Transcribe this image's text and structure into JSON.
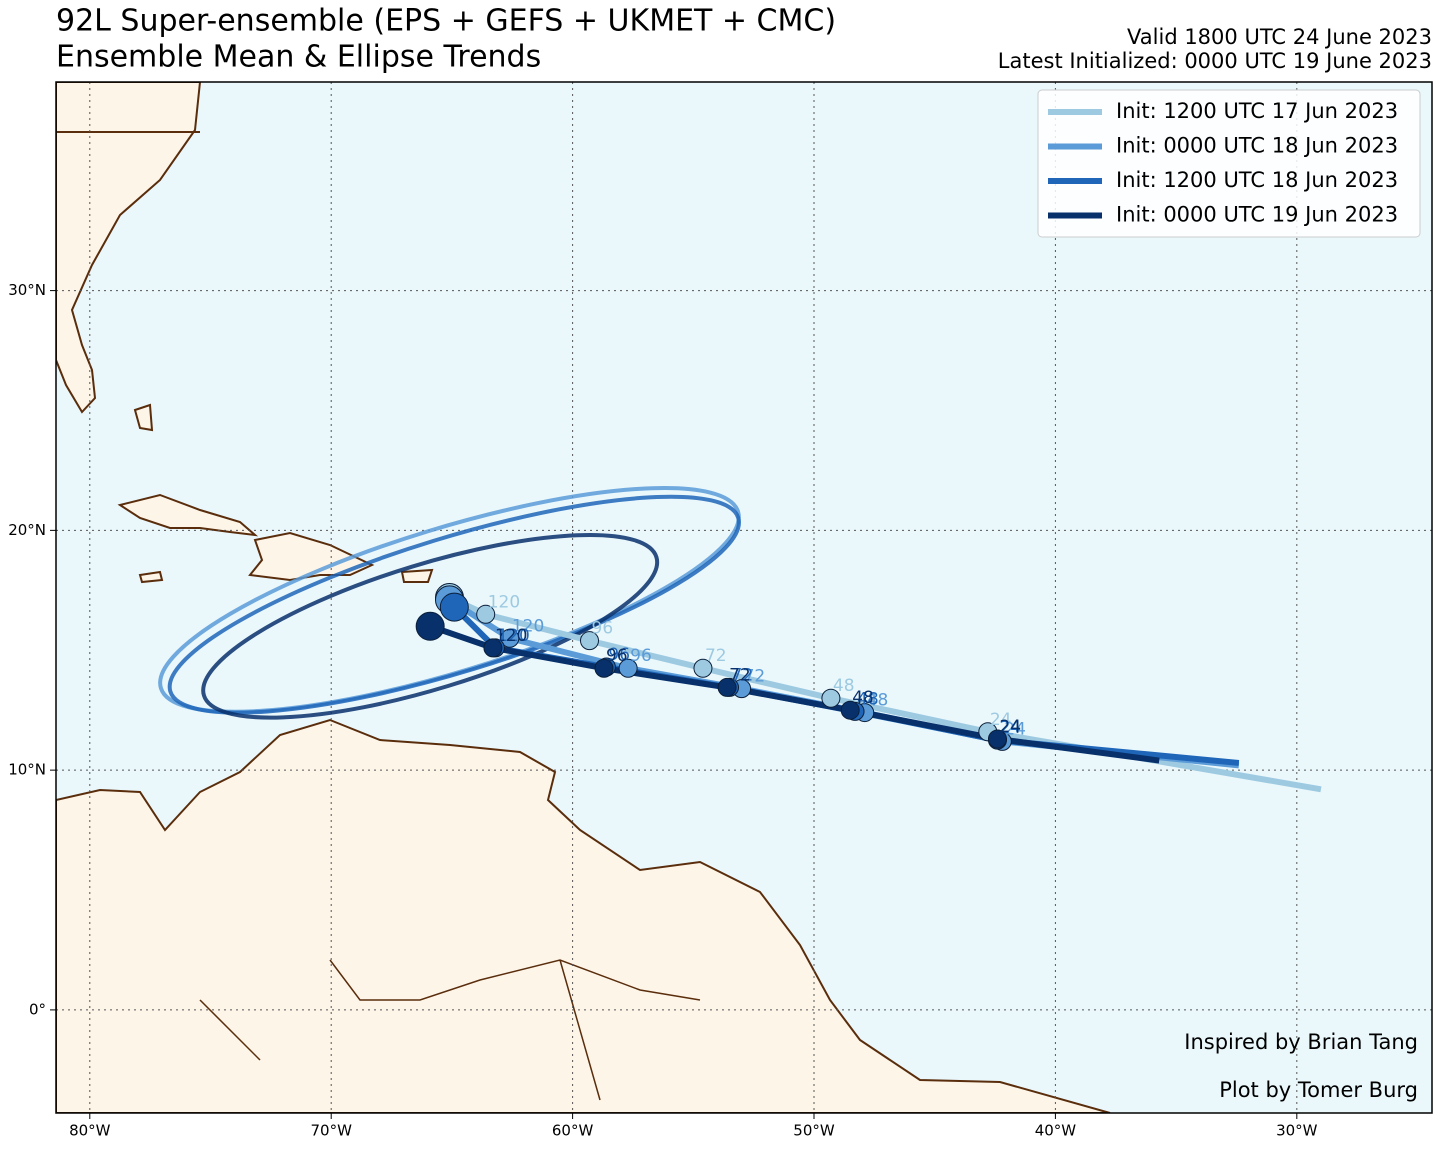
{
  "chart_data": {
    "type": "track-map",
    "title": "92L Super-ensemble (EPS + GEFS + UKMET + CMC)",
    "subtitle": "Ensemble Mean & Ellipse Trends",
    "valid": "Valid 1800 UTC 24 June 2023",
    "latest": "Latest Initialized: 0000 UTC 19 June 2023",
    "credits": [
      "Inspired by Brian Tang",
      "Plot by Tomer Burg"
    ],
    "xlim": [
      -81.4,
      -24.4
    ],
    "ylim": [
      -4.3,
      38.7
    ],
    "xticks": [
      {
        "value": -80,
        "label": "80°W"
      },
      {
        "value": -70,
        "label": "70°W"
      },
      {
        "value": -60,
        "label": "60°W"
      },
      {
        "value": -50,
        "label": "50°W"
      },
      {
        "value": -40,
        "label": "40°W"
      },
      {
        "value": -30,
        "label": "30°W"
      }
    ],
    "yticks": [
      {
        "value": 0,
        "label": "0°"
      },
      {
        "value": 10,
        "label": "10°N"
      },
      {
        "value": 20,
        "label": "20°N"
      },
      {
        "value": 30,
        "label": "30°N"
      }
    ],
    "grid": true,
    "legend": "upper right",
    "series": [
      {
        "name": "Init: 1200 UTC 17 Jun 2023",
        "color": "#9ecae1",
        "lon": [
          -29.0,
          -42.8,
          -49.3,
          -54.6,
          -59.3,
          -63.6,
          -65.1
        ],
        "lat": [
          9.2,
          11.6,
          13.0,
          14.25,
          15.4,
          16.5,
          17.2
        ],
        "hours": [
          null,
          24,
          48,
          72,
          96,
          120,
          null
        ]
      },
      {
        "name": "Init: 0000 UTC 18 Jun 2023",
        "color": "#5b9bd8",
        "lon": [
          -32.4,
          -42.2,
          -47.9,
          -53.0,
          -57.7,
          -62.6,
          -65.1
        ],
        "lat": [
          10.2,
          11.2,
          12.4,
          13.4,
          14.25,
          15.5,
          17.1
        ],
        "hours": [
          null,
          24,
          48,
          72,
          96,
          120,
          null
        ],
        "ellipse": {
          "center_lon": -65.1,
          "center_lat": 17.1,
          "semi_major": 12.5,
          "semi_minor": 3.0,
          "angle": 17
        }
      },
      {
        "name": "Init: 1200 UTC 18 Jun 2023",
        "color": "#1f66b8",
        "lon": [
          -32.4,
          -42.4,
          -48.3,
          -53.5,
          -58.6,
          -63.2,
          -64.9
        ],
        "lat": [
          10.3,
          11.25,
          12.45,
          13.45,
          14.3,
          15.1,
          16.8
        ],
        "hours": [
          null,
          24,
          48,
          72,
          96,
          120,
          null
        ],
        "ellipse": {
          "center_lon": -64.9,
          "center_lat": 16.9,
          "semi_major": 12.3,
          "semi_minor": 2.8,
          "angle": 17
        }
      },
      {
        "name": "Init: 0000 UTC 19 Jun 2023",
        "color": "#08306b",
        "lon": [
          -35.7,
          -42.4,
          -48.5,
          -53.6,
          -58.7,
          -63.3,
          -65.9
        ],
        "lat": [
          10.4,
          11.3,
          12.5,
          13.45,
          14.25,
          15.1,
          16.0
        ],
        "hours": [
          null,
          24,
          48,
          72,
          96,
          120,
          null
        ],
        "ellipse": {
          "center_lon": -65.9,
          "center_lat": 16.0,
          "semi_major": 9.8,
          "semi_minor": 2.6,
          "angle": 17
        }
      }
    ]
  }
}
